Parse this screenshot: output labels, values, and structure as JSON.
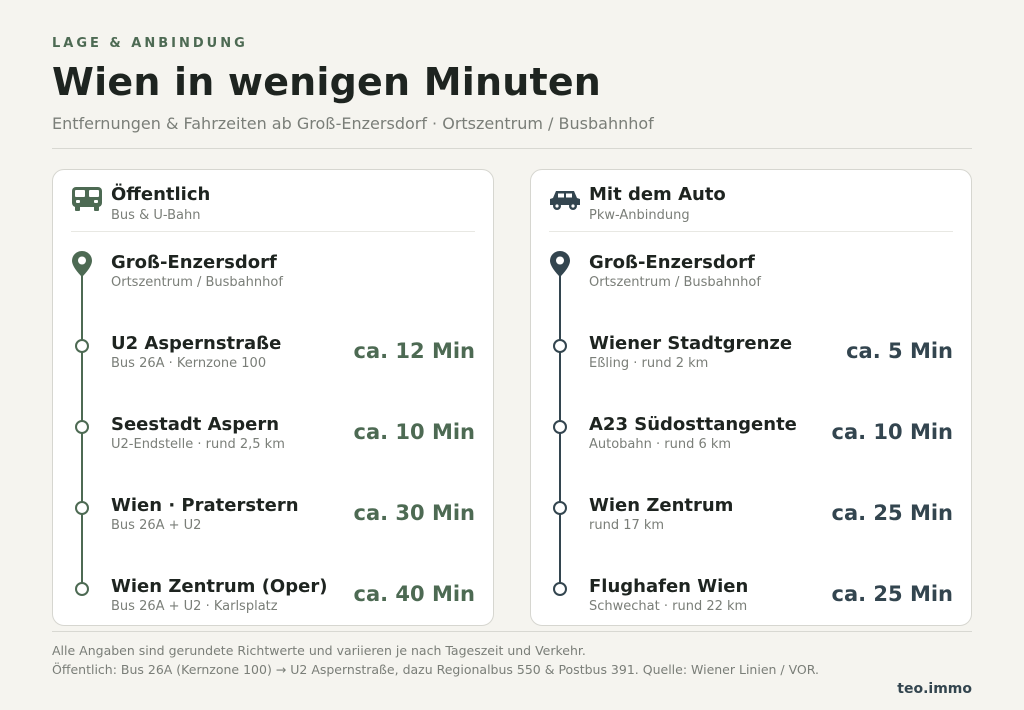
{
  "header": {
    "eyebrow": "LAGE & ANBINDUNG",
    "title": "Wien in wenigen Minuten",
    "subtitle": "Entfernungen & Fahrzeiten ab Groß-Enzersdorf · Ortszentrum / Busbahnhof"
  },
  "colors": {
    "public_accent": "#4d6a53",
    "car_accent": "#33454f",
    "background": "#f5f4ef"
  },
  "public": {
    "icon": "bus-icon",
    "title": "Öffentlich",
    "subtitle": "Bus & U-Bahn",
    "start": {
      "name": "Groß-Enzersdorf",
      "detail": "Ortszentrum / Busbahnhof"
    },
    "stops": [
      {
        "name": "U2 Aspernstraße",
        "detail": "Bus 26A · Kernzone 100",
        "time": "ca. 12 Min"
      },
      {
        "name": "Seestadt Aspern",
        "detail": "U2-Endstelle · rund 2,5 km",
        "time": "ca. 10 Min"
      },
      {
        "name": "Wien · Praterstern",
        "detail": "Bus 26A + U2",
        "time": "ca. 30 Min"
      },
      {
        "name": "Wien Zentrum (Oper)",
        "detail": "Bus 26A + U2 · Karlsplatz",
        "time": "ca. 40 Min"
      }
    ]
  },
  "car": {
    "icon": "car-icon",
    "title": "Mit dem Auto",
    "subtitle": "Pkw-Anbindung",
    "start": {
      "name": "Groß-Enzersdorf",
      "detail": "Ortszentrum / Busbahnhof"
    },
    "stops": [
      {
        "name": "Wiener Stadtgrenze",
        "detail": "Eßling · rund 2 km",
        "time": "ca. 5 Min"
      },
      {
        "name": "A23 Südosttangente",
        "detail": "Autobahn · rund 6 km",
        "time": "ca. 10 Min"
      },
      {
        "name": "Wien Zentrum",
        "detail": "rund 17 km",
        "time": "ca. 25 Min"
      },
      {
        "name": "Flughafen Wien",
        "detail": "Schwechat · rund 22 km",
        "time": "ca. 25 Min"
      }
    ]
  },
  "footer": {
    "note1": "Alle Angaben sind gerundete Richtwerte und variieren je nach Tageszeit und Verkehr.",
    "note2": "Öffentlich: Bus 26A (Kernzone 100) → U2 Aspernstraße, dazu Regionalbus 550 & Postbus 391. Quelle: Wiener Linien / VOR.",
    "brand": "teo.immo"
  }
}
